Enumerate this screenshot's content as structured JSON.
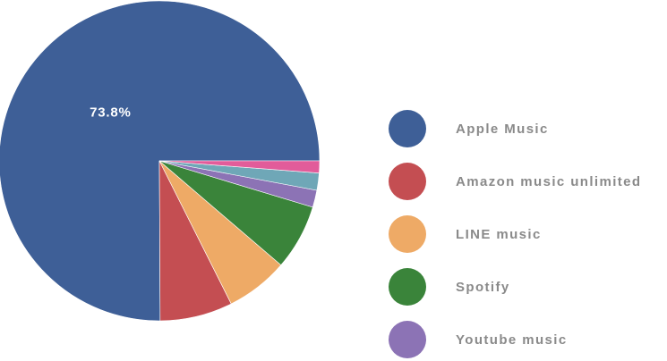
{
  "chart_data": {
    "type": "pie",
    "title": "",
    "start_angle_deg": 0,
    "slices": [
      {
        "label": "Apple Music",
        "value": 73.8,
        "color": "#3e5f97"
      },
      {
        "label": "Amazon music unlimited",
        "value": 7.2,
        "color": "#c44e52"
      },
      {
        "label": "LINE music",
        "value": 6.2,
        "color": "#eeaa66"
      },
      {
        "label": "Spotify",
        "value": 6.5,
        "color": "#3a843a"
      },
      {
        "label": "Youtube music",
        "value": 1.7,
        "color": "#8c73b5"
      },
      {
        "label": "",
        "value": 1.7,
        "color": "#6fa7b7"
      },
      {
        "label": "",
        "value": 1.2,
        "color": "#e25c9a"
      }
    ],
    "data_labels": [
      {
        "slice": 0,
        "text": "73.8%"
      }
    ],
    "legend": {
      "placement": "right",
      "entries": [
        "Apple Music",
        "Amazon music unlimited",
        "LINE music",
        "Spotify",
        "Youtube music"
      ]
    }
  }
}
